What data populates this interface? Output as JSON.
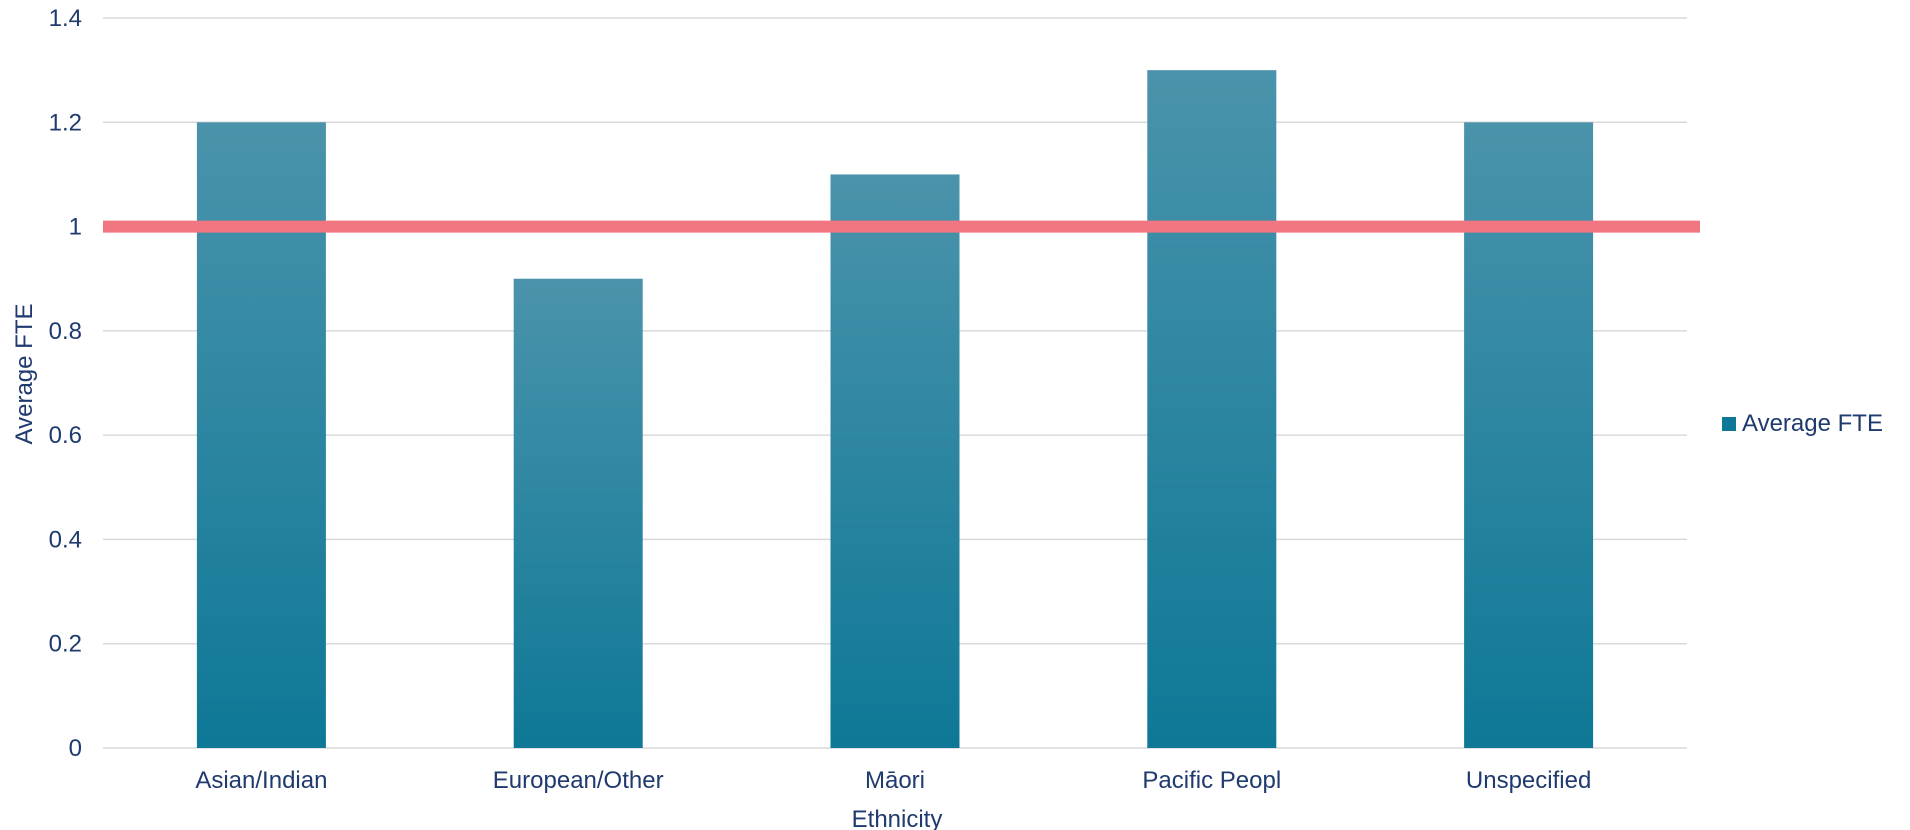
{
  "colors": {
    "bar_top": "#4a93ab",
    "bar_bottom": "#0e7896",
    "reference_line": "#f07681",
    "grid": "#d9d9d9",
    "text": "#1f3a6e"
  },
  "chart_data": {
    "type": "bar",
    "categories": [
      "Asian/Indian",
      "European/Other",
      "Māori",
      "Pacific Peopl",
      "Unspecified"
    ],
    "series": [
      {
        "name": "Average FTE",
        "values": [
          1.2,
          0.9,
          1.1,
          1.3,
          1.2
        ]
      }
    ],
    "reference_line": {
      "value": 1
    },
    "xlabel": "Ethnicity",
    "ylabel": "Average FTE",
    "ylim": [
      0,
      1.4
    ],
    "yticks": [
      "0",
      "0.2",
      "0.4",
      "0.6",
      "0.8",
      "1",
      "1.2",
      "1.4"
    ],
    "grid": true,
    "legend": {
      "position": "right",
      "entries": [
        "Average FTE"
      ]
    }
  }
}
